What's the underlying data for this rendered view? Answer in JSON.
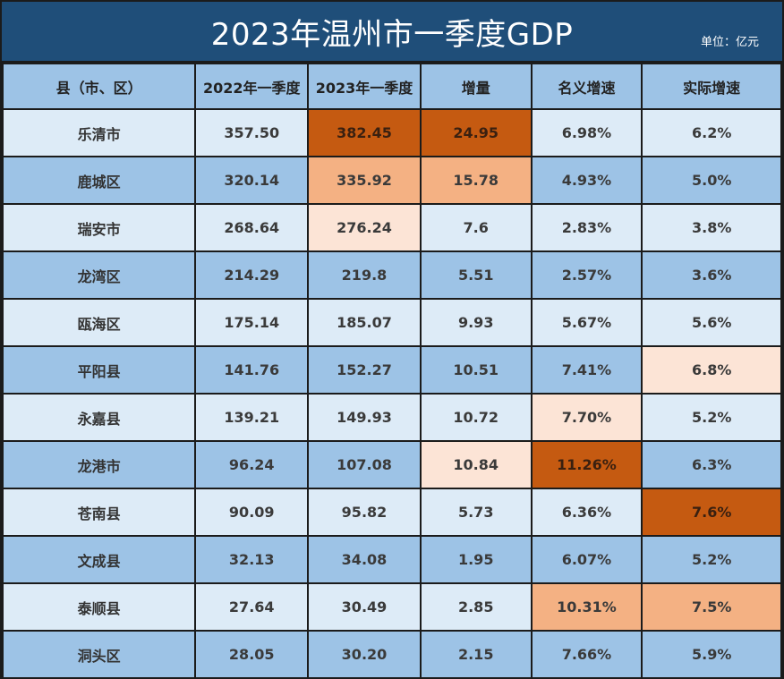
{
  "chart_data": {
    "type": "table",
    "title": "2023年温州市一季度GDP",
    "unit_label": "单位：亿元",
    "columns": [
      "县（市、区）",
      "2022年一季度",
      "2023年一季度",
      "增量",
      "名义增速",
      "实际增速"
    ],
    "rows": [
      {
        "name": "乐清市",
        "gdp_2022": "357.50",
        "gdp_2023": "382.45",
        "increase": "24.95",
        "nominal_growth": "6.98%",
        "real_growth": "6.2%",
        "highlight": {
          "gdp_2023": "dark",
          "increase": "dark"
        }
      },
      {
        "name": "鹿城区",
        "gdp_2022": "320.14",
        "gdp_2023": "335.92",
        "increase": "15.78",
        "nominal_growth": "4.93%",
        "real_growth": "5.0%",
        "highlight": {
          "gdp_2023": "mid",
          "increase": "mid"
        }
      },
      {
        "name": "瑞安市",
        "gdp_2022": "268.64",
        "gdp_2023": "276.24",
        "increase": "7.6",
        "nominal_growth": "2.83%",
        "real_growth": "3.8%",
        "highlight": {
          "gdp_2023": "light"
        }
      },
      {
        "name": "龙湾区",
        "gdp_2022": "214.29",
        "gdp_2023": "219.8",
        "increase": "5.51",
        "nominal_growth": "2.57%",
        "real_growth": "3.6%",
        "highlight": {}
      },
      {
        "name": "瓯海区",
        "gdp_2022": "175.14",
        "gdp_2023": "185.07",
        "increase": "9.93",
        "nominal_growth": "5.67%",
        "real_growth": "5.6%",
        "highlight": {}
      },
      {
        "name": "平阳县",
        "gdp_2022": "141.76",
        "gdp_2023": "152.27",
        "increase": "10.51",
        "nominal_growth": "7.41%",
        "real_growth": "6.8%",
        "highlight": {
          "real_growth": "light"
        }
      },
      {
        "name": "永嘉县",
        "gdp_2022": "139.21",
        "gdp_2023": "149.93",
        "increase": "10.72",
        "nominal_growth": "7.70%",
        "real_growth": "5.2%",
        "highlight": {
          "nominal_growth": "light"
        }
      },
      {
        "name": "龙港市",
        "gdp_2022": "96.24",
        "gdp_2023": "107.08",
        "increase": "10.84",
        "nominal_growth": "11.26%",
        "real_growth": "6.3%",
        "highlight": {
          "increase": "light",
          "nominal_growth": "dark"
        }
      },
      {
        "name": "苍南县",
        "gdp_2022": "90.09",
        "gdp_2023": "95.82",
        "increase": "5.73",
        "nominal_growth": "6.36%",
        "real_growth": "7.6%",
        "highlight": {
          "real_growth": "dark"
        }
      },
      {
        "name": "文成县",
        "gdp_2022": "32.13",
        "gdp_2023": "34.08",
        "increase": "1.95",
        "nominal_growth": "6.07%",
        "real_growth": "5.2%",
        "highlight": {}
      },
      {
        "name": "泰顺县",
        "gdp_2022": "27.64",
        "gdp_2023": "30.49",
        "increase": "2.85",
        "nominal_growth": "10.31%",
        "real_growth": "7.5%",
        "highlight": {
          "nominal_growth": "mid",
          "real_growth": "mid"
        }
      },
      {
        "name": "洞头区",
        "gdp_2022": "28.05",
        "gdp_2023": "30.20",
        "increase": "2.15",
        "nominal_growth": "7.66%",
        "real_growth": "5.9%",
        "highlight": {}
      }
    ]
  },
  "colors": {
    "title_bar": "#1f4e79",
    "header_row": "#9dc3e6",
    "row_light": "#ddebf7",
    "row_blue": "#9dc3e6",
    "highlight_dark": "#c55a11",
    "highlight_mid": "#f4b183",
    "highlight_light": "#fce4d6"
  }
}
